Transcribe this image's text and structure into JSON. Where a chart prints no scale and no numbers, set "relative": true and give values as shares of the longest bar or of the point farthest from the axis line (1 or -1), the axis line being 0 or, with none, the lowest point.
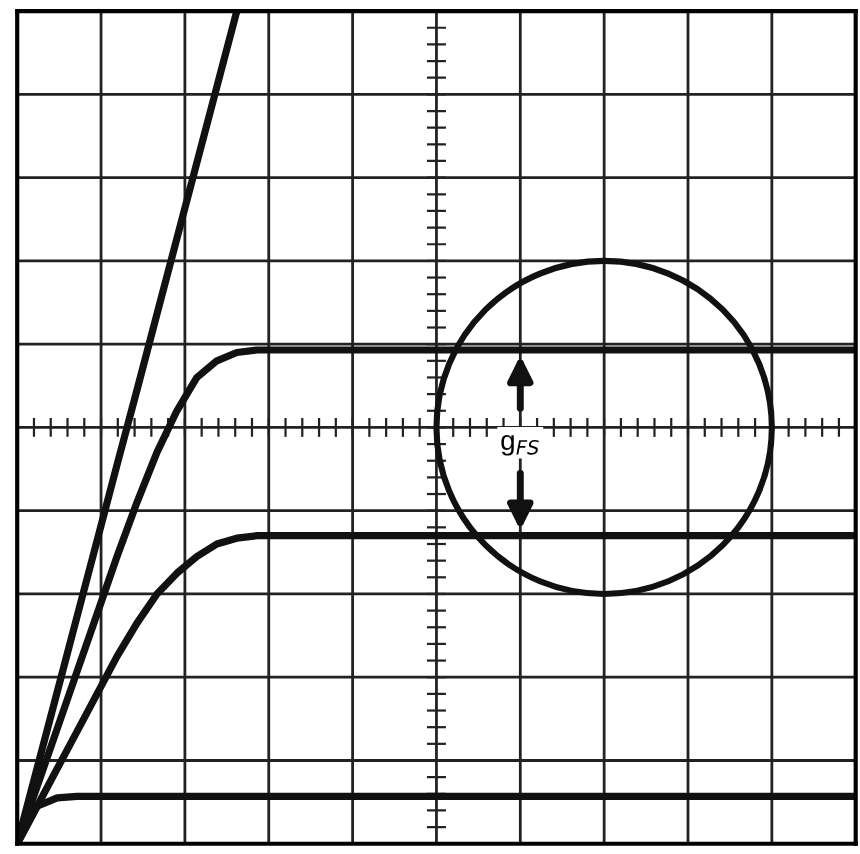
{
  "chart_data": {
    "type": "line",
    "relative": true,
    "grid": true,
    "categories": [
      null,
      null,
      null,
      null,
      null,
      null,
      null,
      null,
      null,
      null,
      null,
      null,
      null,
      null,
      null,
      null,
      null,
      null,
      null,
      null,
      null,
      null,
      null,
      null,
      null,
      null,
      null,
      null,
      null,
      null,
      null,
      null,
      null,
      null,
      null,
      null,
      null,
      null,
      null,
      null,
      null,
      null,
      null
    ],
    "series": [
      {
        "color": "#111111",
        "values": [
          0,
          0.091,
          0.182,
          0.273,
          0.364,
          0.455,
          0.545,
          0.636,
          0.727,
          0.818,
          0.909,
          1.0,
          null,
          null,
          null,
          null,
          null,
          null,
          null,
          null,
          null,
          null,
          null,
          null,
          null,
          null,
          null,
          null,
          null,
          null,
          null,
          null,
          null,
          null,
          null,
          null,
          null,
          null,
          null,
          null,
          null,
          null,
          null
        ]
      },
      {
        "color": "#111111",
        "values": [
          0,
          0.069,
          0.138,
          0.207,
          0.276,
          0.345,
          0.41,
          0.47,
          0.52,
          0.56,
          0.58,
          0.59,
          0.593,
          0.593,
          0.593,
          0.593,
          0.593,
          0.593,
          0.593,
          0.593,
          0.593,
          0.593,
          0.593,
          0.593,
          0.593,
          0.593,
          0.593,
          0.593,
          0.593,
          0.593,
          0.593,
          0.593,
          0.593,
          0.593,
          0.593,
          0.593,
          0.593,
          0.593,
          0.593,
          0.593,
          0.593,
          0.593,
          0.593
        ]
      },
      {
        "color": "#111111",
        "values": [
          0,
          0.045,
          0.09,
          0.135,
          0.18,
          0.225,
          0.265,
          0.3,
          0.325,
          0.345,
          0.36,
          0.367,
          0.37,
          0.37,
          0.37,
          0.37,
          0.37,
          0.37,
          0.37,
          0.37,
          0.37,
          0.37,
          0.37,
          0.37,
          0.37,
          0.37,
          0.37,
          0.37,
          0.37,
          0.37,
          0.37,
          0.37,
          0.37,
          0.37,
          0.37,
          0.37,
          0.37,
          0.37,
          0.37,
          0.37,
          0.37,
          0.37,
          0.37
        ]
      },
      {
        "color": "#111111",
        "values": [
          0,
          0.045,
          0.055,
          0.057,
          0.057,
          0.057,
          0.057,
          0.057,
          0.057,
          0.057,
          0.057,
          0.057,
          0.057,
          0.057,
          0.057,
          0.057,
          0.057,
          0.057,
          0.057,
          0.057,
          0.057,
          0.057,
          0.057,
          0.057,
          0.057,
          0.057,
          0.057,
          0.057,
          0.057,
          0.057,
          0.057,
          0.057,
          0.057,
          0.057,
          0.057,
          0.057,
          0.057,
          0.057,
          0.057,
          0.057,
          0.057,
          0.057,
          0.057
        ]
      }
    ],
    "annotations": [
      "g$_{FS}$"
    ]
  }
}
